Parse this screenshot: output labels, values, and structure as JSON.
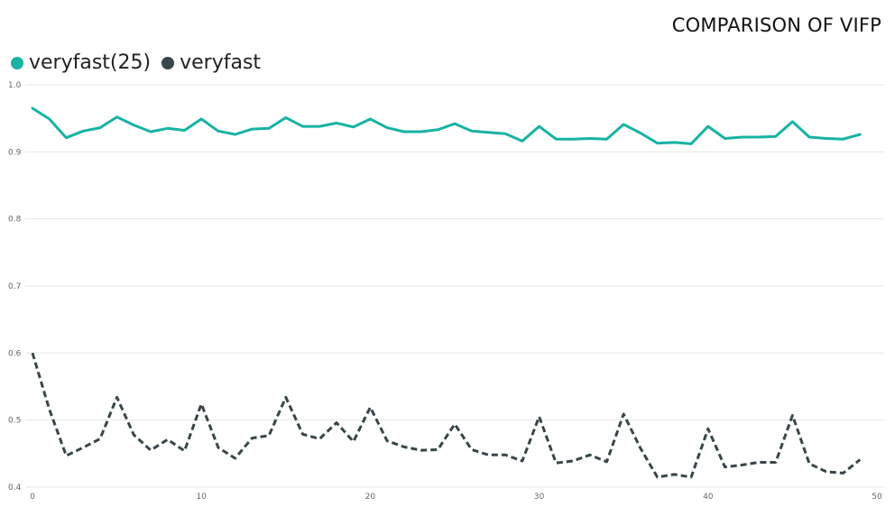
{
  "chart_data": {
    "type": "line",
    "title": "COMPARISON OF VIFP",
    "xlabel": "",
    "ylabel": "",
    "xlim": [
      0,
      50
    ],
    "ylim": [
      0.4,
      1.0
    ],
    "x_ticks": [
      "0",
      "10",
      "20",
      "30",
      "40",
      "50"
    ],
    "y_ticks": [
      "1.0",
      "0.9",
      "0.8",
      "0.7",
      "0.6",
      "0.5",
      "0.4"
    ],
    "grid": true,
    "legend_position": "top-left",
    "x": [
      0,
      1,
      2,
      3,
      4,
      5,
      6,
      7,
      8,
      9,
      10,
      11,
      12,
      13,
      14,
      15,
      16,
      17,
      18,
      19,
      20,
      21,
      22,
      23,
      24,
      25,
      26,
      27,
      28,
      29,
      30,
      31,
      32,
      33,
      34,
      35,
      36,
      37,
      38,
      39,
      40,
      41,
      42,
      43,
      44,
      45,
      46,
      47,
      48,
      49
    ],
    "series": [
      {
        "name": "veryfast(25)",
        "color": "#17b3a3",
        "style": "solid",
        "values": [
          0.965,
          0.949,
          0.921,
          0.931,
          0.936,
          0.952,
          0.94,
          0.93,
          0.935,
          0.932,
          0.949,
          0.931,
          0.926,
          0.934,
          0.935,
          0.951,
          0.938,
          0.938,
          0.943,
          0.937,
          0.949,
          0.936,
          0.93,
          0.93,
          0.933,
          0.942,
          0.931,
          0.929,
          0.927,
          0.916,
          0.938,
          0.919,
          0.919,
          0.92,
          0.919,
          0.941,
          0.928,
          0.913,
          0.914,
          0.912,
          0.938,
          0.92,
          0.922,
          0.922,
          0.923,
          0.945,
          0.922,
          0.92,
          0.919,
          0.926
        ]
      },
      {
        "name": "veryfast",
        "color": "#374649",
        "style": "dashed",
        "values": [
          0.6,
          0.516,
          0.447,
          0.459,
          0.472,
          0.534,
          0.478,
          0.455,
          0.471,
          0.454,
          0.524,
          0.459,
          0.443,
          0.473,
          0.477,
          0.534,
          0.479,
          0.472,
          0.496,
          0.468,
          0.519,
          0.469,
          0.46,
          0.455,
          0.456,
          0.494,
          0.456,
          0.448,
          0.448,
          0.439,
          0.505,
          0.436,
          0.439,
          0.448,
          0.438,
          0.509,
          0.458,
          0.415,
          0.419,
          0.415,
          0.487,
          0.43,
          0.433,
          0.437,
          0.437,
          0.507,
          0.435,
          0.423,
          0.421,
          0.441
        ]
      }
    ]
  }
}
